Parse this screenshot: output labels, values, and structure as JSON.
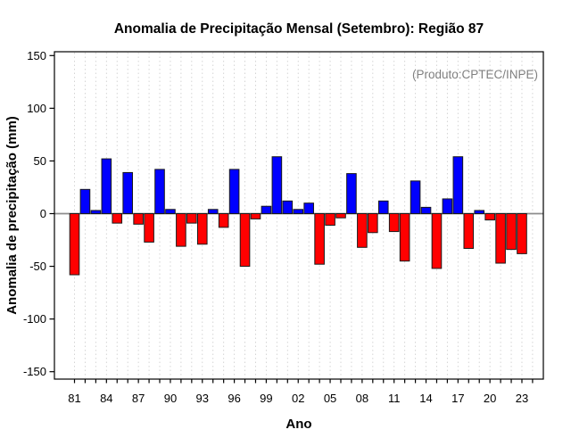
{
  "chart_data": {
    "type": "bar",
    "title": "Anomalia de Precipitação Mensal (Setembro): Região 87",
    "annotation": "(Produto:CPTEC/INPE)",
    "xlabel": "Ano",
    "ylabel": "Anomalia de precipitação (mm)",
    "ylim": [
      -155,
      155
    ],
    "yticks": [
      150,
      100,
      50,
      0,
      -50,
      -100,
      -150
    ],
    "xtick_labels": [
      "81",
      "84",
      "87",
      "90",
      "93",
      "96",
      "99",
      "02",
      "05",
      "08",
      "11",
      "14",
      "17",
      "20",
      "23"
    ],
    "xtick_label_interval": 3,
    "years": [
      1981,
      1982,
      1983,
      1984,
      1985,
      1986,
      1987,
      1988,
      1989,
      1990,
      1991,
      1992,
      1993,
      1994,
      1995,
      1996,
      1997,
      1998,
      1999,
      2000,
      2001,
      2002,
      2003,
      2004,
      2005,
      2006,
      2007,
      2008,
      2009,
      2010,
      2011,
      2012,
      2013,
      2014,
      2015,
      2016,
      2017,
      2018,
      2019,
      2020,
      2021,
      2022,
      2023
    ],
    "values": [
      -58,
      23,
      3,
      52,
      -9,
      39,
      -10,
      -27,
      42,
      4,
      -31,
      -9,
      -29,
      4,
      -13,
      42,
      -50,
      -5,
      7,
      54,
      12,
      4,
      10,
      -48,
      -11,
      -4,
      38,
      -32,
      -18,
      12,
      -17,
      -45,
      31,
      6,
      -52,
      14,
      54,
      -33,
      3,
      -6,
      -47,
      -34,
      -38
    ],
    "legend": "none",
    "grid": "vertical-dashed",
    "colors": {
      "positive": "#0000ff",
      "negative": "#ff0000",
      "bar_border": "#1a1a1a",
      "zero_line": "#8c8c8c",
      "grid": "#d0d0d0",
      "axis": "#000000",
      "annotation": "#808080",
      "background": "#ffffff"
    }
  }
}
